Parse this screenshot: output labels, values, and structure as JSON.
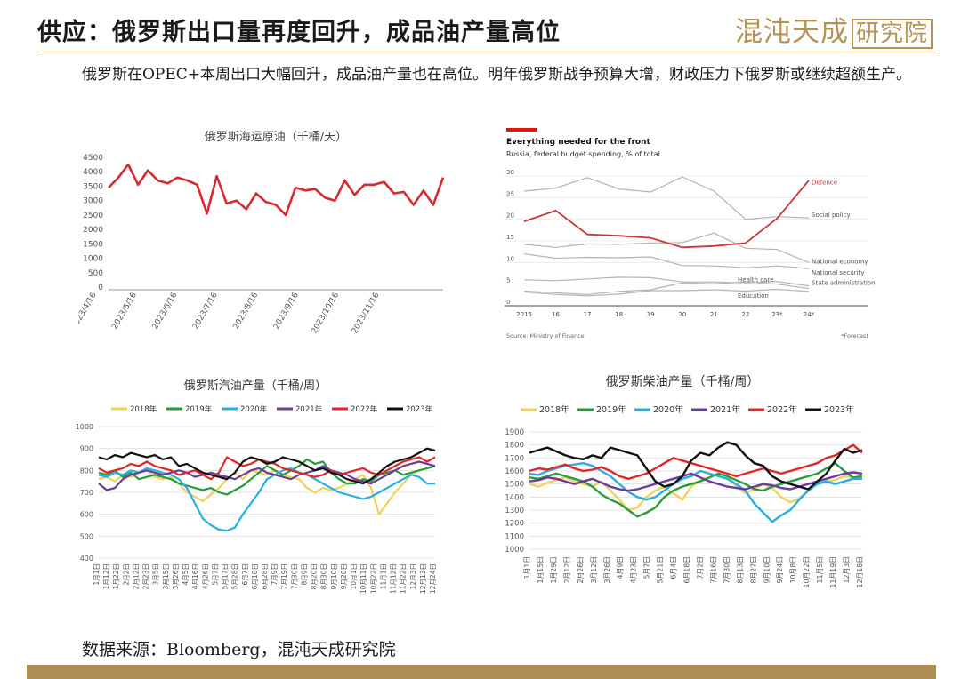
{
  "header": {
    "title": "供应：俄罗斯出口量再度回升，成品油产量高位",
    "logo_text": "混沌天成",
    "logo_box": "研究院"
  },
  "intro": "俄罗斯在OPEC+本周出口大幅回升，成品油产量也在高位。明年俄罗斯战争预算大增，财政压力下俄罗斯或继续超额生产。",
  "footer": {
    "source": "数据来源：Bloomberg，混沌天成研究院"
  },
  "chart_data": [
    {
      "id": "crude",
      "type": "line",
      "title": "俄罗斯海运原油（千桶/天）",
      "ylim": [
        0,
        4500
      ],
      "yticks": [
        0,
        500,
        1000,
        1500,
        2000,
        2500,
        3000,
        3500,
        4000,
        4500
      ],
      "xticklabels": [
        "2023/4/16",
        "2023/5/16",
        "2023/6/16",
        "2023/7/16",
        "2023/8/16",
        "2023/9/16",
        "2023/10/16",
        "2023/11/16"
      ],
      "colors": {
        "line": "#d9282f"
      },
      "series": [
        {
          "values": [
            3450,
            3800,
            4250,
            3550,
            4050,
            3700,
            3600,
            3800,
            3700,
            3550,
            2550,
            3850,
            2900,
            3000,
            2700,
            3250,
            2950,
            2850,
            2500,
            3450,
            3350,
            3400,
            3100,
            3000,
            3700,
            3200,
            3550,
            3550,
            3650,
            3250,
            3300,
            2850,
            3350,
            2850,
            3800
          ]
        }
      ]
    },
    {
      "id": "budget",
      "type": "line",
      "title": "Everything needed for the front",
      "subtitle": "Russia, federal budget spending, % of total",
      "source": "Source: Ministry of Finance",
      "footnote": "*Forecast",
      "x": [
        "2015",
        "16",
        "17",
        "18",
        "19",
        "20",
        "21",
        "22",
        "23*",
        "24*"
      ],
      "ylim": [
        0,
        30
      ],
      "yticks": [
        0,
        5,
        10,
        15,
        20,
        25,
        30
      ],
      "colors": {
        "defence": "#c8383a",
        "other": "#b4b4b4",
        "accent": "#e3120b"
      },
      "series": [
        {
          "name": "Defence",
          "values": [
            19.5,
            22,
            16.5,
            16.2,
            15.7,
            13.5,
            13.8,
            14.5,
            20.2,
            29
          ]
        },
        {
          "name": "Social policy",
          "values": [
            26.5,
            27.2,
            29.6,
            27,
            26.3,
            29.8,
            26.5,
            20,
            20.6,
            20.3
          ]
        },
        {
          "name": "National economy",
          "values": [
            14.2,
            13.5,
            14.3,
            14.2,
            14.5,
            14.6,
            16.8,
            13.3,
            13,
            10
          ]
        },
        {
          "name": "National security",
          "values": [
            12,
            11,
            11.2,
            11.1,
            11.3,
            9.3,
            9.2,
            8.8,
            9.2,
            8.6
          ]
        },
        {
          "name": "State administration",
          "values": [
            6,
            5.8,
            6.2,
            6.6,
            6.5,
            5.5,
            5.5,
            5.3,
            5.6,
            4.6
          ]
        },
        {
          "name": "Health care",
          "values": [
            3.4,
            3,
            2.6,
            3.3,
            3.7,
            5.3,
            5.1,
            5.5,
            5,
            4
          ]
        },
        {
          "name": "Education",
          "values": [
            3.2,
            2.6,
            2.3,
            2.7,
            3.5,
            3.5,
            3.7,
            3.4,
            3.8,
            3.3
          ]
        }
      ]
    },
    {
      "id": "gasoline",
      "type": "line",
      "title": "俄罗斯汽油产量（千桶/周）",
      "ylim": [
        400,
        1000
      ],
      "yticks": [
        400,
        500,
        600,
        700,
        800,
        900,
        1000
      ],
      "xticklabels": [
        "1月1日",
        "1月12日",
        "1月22日",
        "2月2日",
        "2月12日",
        "2月23日",
        "3月5日",
        "3月15日",
        "3月26日",
        "4月5日",
        "4月16日",
        "4月26日",
        "5月7日",
        "5月17日",
        "5月28日",
        "6月7日",
        "6月18日",
        "6月28日",
        "7月9日",
        "7月19日",
        "7月30日",
        "8月9日",
        "8月20日",
        "8月30日",
        "9月10日",
        "9月20日",
        "10月1日",
        "10月11日",
        "10月22日",
        "11月1日",
        "11月12日",
        "11月22日",
        "12月3日",
        "12月13日",
        "12月24日"
      ],
      "series": [
        {
          "name": "2018年",
          "color": "#f2d15a",
          "values": [
            760,
            770,
            750,
            780,
            770,
            790,
            800,
            770,
            760,
            770,
            740,
            700,
            680,
            660,
            690,
            720,
            760,
            790,
            760,
            800,
            790,
            780,
            800,
            780,
            770,
            760,
            720,
            700,
            720,
            710,
            720,
            740,
            760,
            780,
            720,
            600,
            650,
            700,
            740,
            780,
            800,
            810,
            820
          ]
        },
        {
          "name": "2019年",
          "color": "#2a9a3e",
          "values": [
            790,
            780,
            800,
            770,
            790,
            760,
            770,
            780,
            770,
            760,
            740,
            730,
            720,
            710,
            720,
            700,
            690,
            710,
            730,
            760,
            790,
            820,
            800,
            780,
            800,
            820,
            850,
            830,
            840,
            790,
            760,
            740,
            740,
            760,
            750,
            780,
            790,
            800,
            780,
            790,
            800,
            810,
            820
          ]
        },
        {
          "name": "2020年",
          "color": "#29aee2",
          "values": [
            780,
            770,
            790,
            780,
            800,
            790,
            810,
            800,
            790,
            780,
            760,
            720,
            650,
            580,
            550,
            530,
            525,
            540,
            600,
            650,
            700,
            760,
            780,
            800,
            810,
            790,
            780,
            760,
            740,
            720,
            700,
            690,
            680,
            670,
            680,
            700,
            720,
            740,
            760,
            780,
            770,
            740,
            740
          ]
        },
        {
          "name": "2021年",
          "color": "#6a3c9c",
          "values": [
            740,
            710,
            720,
            760,
            780,
            790,
            800,
            790,
            780,
            790,
            800,
            790,
            770,
            780,
            790,
            780,
            770,
            760,
            780,
            800,
            810,
            790,
            780,
            770,
            760,
            780,
            790,
            800,
            820,
            800,
            790,
            780,
            760,
            750,
            740,
            760,
            780,
            800,
            820,
            830,
            840,
            830,
            820
          ]
        },
        {
          "name": "2022年",
          "color": "#e1262a",
          "values": [
            810,
            790,
            800,
            810,
            830,
            820,
            840,
            820,
            810,
            800,
            780,
            790,
            800,
            780,
            760,
            790,
            860,
            840,
            820,
            830,
            850,
            840,
            830,
            810,
            800,
            790,
            780,
            770,
            780,
            800,
            780,
            790,
            800,
            810,
            790,
            780,
            800,
            820,
            840,
            850,
            860,
            840,
            860
          ]
        },
        {
          "name": "2023年",
          "color": "#111111",
          "values": [
            860,
            850,
            870,
            860,
            880,
            870,
            860,
            870,
            850,
            860,
            820,
            830,
            810,
            790,
            780,
            770,
            760,
            790,
            840,
            860,
            850,
            830,
            840,
            860,
            850,
            840,
            820,
            800,
            810,
            790,
            780,
            760,
            750,
            740,
            760,
            790,
            820,
            840,
            850,
            860,
            880,
            900,
            890
          ]
        }
      ]
    },
    {
      "id": "diesel",
      "type": "line",
      "title": "俄罗斯柴油产量（千桶/周）",
      "ylim": [
        1000,
        1900
      ],
      "yticks": [
        1000,
        1100,
        1200,
        1300,
        1400,
        1500,
        1600,
        1700,
        1800,
        1900
      ],
      "xticklabels": [
        "1月1日",
        "1月15日",
        "1月29日",
        "2月12日",
        "2月26日",
        "3月12日",
        "3月26日",
        "4月9日",
        "4月23日",
        "5月7日",
        "5月21日",
        "6月4日",
        "6月18日",
        "7月2日",
        "7月16日",
        "7月30日",
        "8月13日",
        "8月27日",
        "9月10日",
        "9月24日",
        "10月8日",
        "10月22日",
        "11月5日",
        "11月19日",
        "12月3日",
        "12月18日"
      ],
      "series": [
        {
          "name": "2018年",
          "color": "#f2d15a",
          "values": [
            1500,
            1480,
            1510,
            1530,
            1550,
            1520,
            1500,
            1480,
            1520,
            1450,
            1380,
            1300,
            1320,
            1400,
            1450,
            1480,
            1430,
            1380,
            1480,
            1530,
            1550,
            1580,
            1560,
            1480,
            1430,
            1460,
            1500,
            1470,
            1400,
            1360,
            1390,
            1450,
            1500,
            1520,
            1530,
            1560,
            1550,
            1540
          ]
        },
        {
          "name": "2019年",
          "color": "#2a9a3e",
          "values": [
            1550,
            1540,
            1560,
            1580,
            1560,
            1540,
            1520,
            1480,
            1420,
            1380,
            1350,
            1300,
            1250,
            1280,
            1320,
            1400,
            1450,
            1480,
            1500,
            1520,
            1550,
            1580,
            1560,
            1530,
            1500,
            1460,
            1450,
            1480,
            1500,
            1520,
            1540,
            1560,
            1580,
            1620,
            1660,
            1600,
            1550,
            1560
          ]
        },
        {
          "name": "2020年",
          "color": "#29aee2",
          "values": [
            1580,
            1570,
            1600,
            1620,
            1640,
            1650,
            1660,
            1640,
            1600,
            1560,
            1500,
            1440,
            1400,
            1380,
            1400,
            1450,
            1500,
            1540,
            1560,
            1600,
            1580,
            1560,
            1540,
            1500,
            1450,
            1350,
            1280,
            1210,
            1260,
            1300,
            1380,
            1450,
            1500,
            1520,
            1500,
            1520,
            1540,
            1540
          ]
        },
        {
          "name": "2021年",
          "color": "#6a3c9c",
          "values": [
            1520,
            1530,
            1550,
            1540,
            1520,
            1500,
            1520,
            1540,
            1510,
            1480,
            1460,
            1450,
            1460,
            1480,
            1500,
            1520,
            1540,
            1560,
            1580,
            1550,
            1520,
            1500,
            1480,
            1470,
            1460,
            1480,
            1500,
            1490,
            1470,
            1460,
            1480,
            1500,
            1520,
            1540,
            1560,
            1580,
            1590,
            1580
          ]
        },
        {
          "name": "2022年",
          "color": "#e1262a",
          "values": [
            1600,
            1620,
            1610,
            1630,
            1650,
            1620,
            1600,
            1610,
            1630,
            1600,
            1560,
            1540,
            1560,
            1580,
            1620,
            1660,
            1700,
            1680,
            1660,
            1640,
            1620,
            1600,
            1580,
            1560,
            1580,
            1600,
            1620,
            1600,
            1580,
            1600,
            1620,
            1640,
            1660,
            1700,
            1720,
            1760,
            1800,
            1740
          ]
        },
        {
          "name": "2023年",
          "color": "#111111",
          "values": [
            1740,
            1760,
            1780,
            1750,
            1720,
            1700,
            1690,
            1720,
            1700,
            1780,
            1760,
            1740,
            1720,
            1620,
            1520,
            1480,
            1500,
            1560,
            1680,
            1740,
            1720,
            1780,
            1820,
            1800,
            1720,
            1660,
            1640,
            1560,
            1520,
            1500,
            1480,
            1460,
            1520,
            1580,
            1680,
            1770,
            1740,
            1760
          ]
        }
      ]
    }
  ]
}
